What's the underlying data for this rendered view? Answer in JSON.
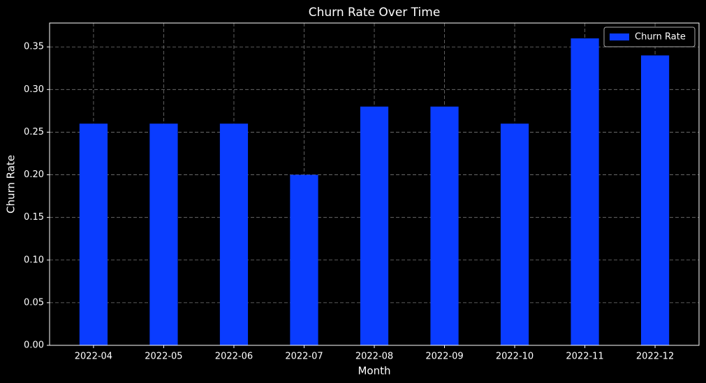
{
  "chart_data": {
    "type": "bar",
    "title": "Churn Rate Over Time",
    "x_label": "Month",
    "y_label": "Churn Rate",
    "categories": [
      "2022-04",
      "2022-05",
      "2022-06",
      "2022-07",
      "2022-08",
      "2022-09",
      "2022-10",
      "2022-11",
      "2022-12"
    ],
    "series": [
      {
        "name": "Churn Rate",
        "color": "#0a3cff",
        "values": [
          0.26,
          0.26,
          0.26,
          0.2,
          0.28,
          0.28,
          0.26,
          0.36,
          0.34
        ]
      }
    ],
    "ylim": [
      0,
      0.378
    ],
    "yticks": [
      {
        "value": 0,
        "label": "0.00"
      },
      0.05,
      {
        "value": 0.1,
        "label": "0.10"
      },
      0.15,
      {
        "value": 0.2,
        "label": "0.20"
      },
      0.25,
      {
        "value": 0.3,
        "label": "0.30"
      },
      0.35
    ],
    "grid": true,
    "legend": "upper right"
  }
}
